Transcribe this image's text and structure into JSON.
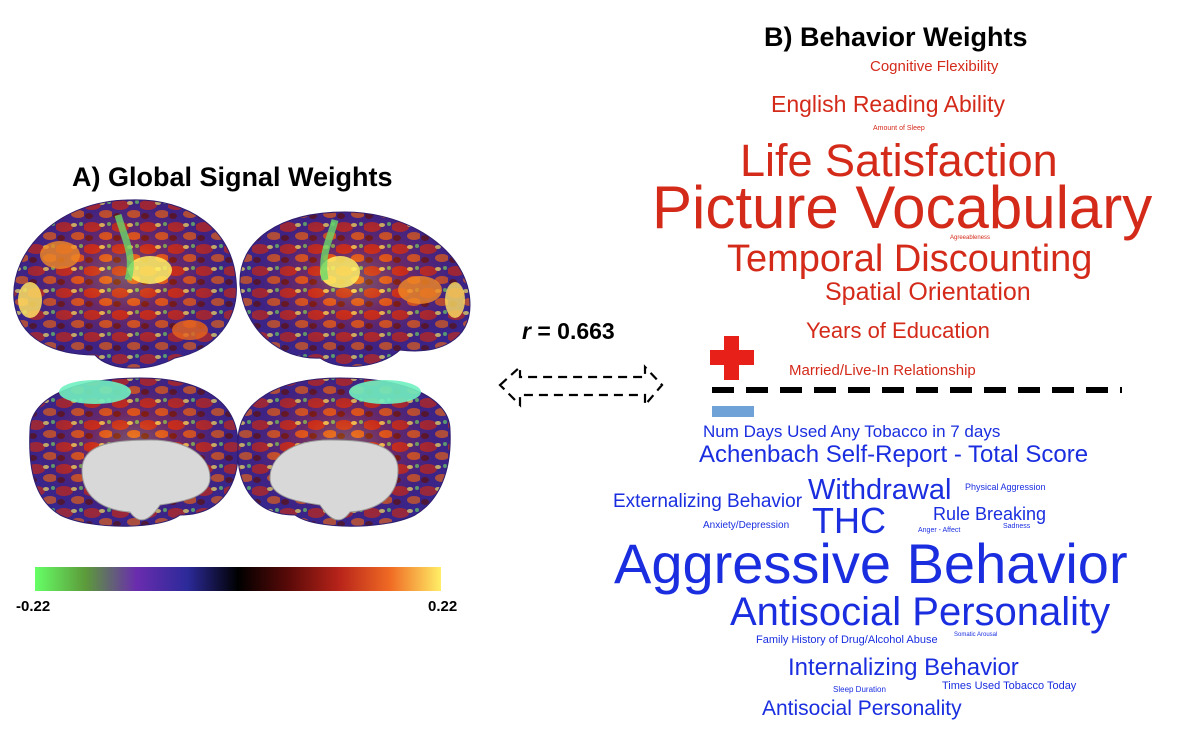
{
  "panel_a": {
    "title": "A) Global Signal Weights",
    "colorbar": {
      "min_label": "-0.22",
      "max_label": "0.22",
      "colors": [
        "#66ff66",
        "#5c9a3a",
        "#6a2cae",
        "#2c2a9a",
        "#000000",
        "#5a0a08",
        "#b8241a",
        "#f06b24",
        "#ffee66"
      ]
    }
  },
  "correlation": {
    "r_symbol": "r",
    "r_value_text": " = 0.663"
  },
  "panel_b": {
    "title": "B) Behavior Weights",
    "positive_words": [
      "Cognitive Flexibility",
      "English Reading Ability",
      "Amount of Sleep",
      "Life Satisfaction",
      "Picture Vocabulary",
      "Agreeableness",
      "Temporal Discounting",
      "Spatial Orientation",
      "Years of Education",
      "Married/Live-In Relationship"
    ],
    "negative_words": [
      "Num Days Used Any Tobacco in 7 days",
      "Achenbach Self-Report - Total Score",
      "Externalizing Behavior",
      "Withdrawal",
      "Physical Aggression",
      "Anxiety/Depression",
      "THC",
      "Rule Breaking",
      "Anger - Affect",
      "Sadness",
      "Aggressive Behavior",
      "Antisocial Personality",
      "Family History of Drug/Alcohol Abuse",
      "Somatic Arousal",
      "Internalizing Behavior",
      "Sleep Duration",
      "Times Used Tobacco Today",
      "Antisocial Personality"
    ],
    "positive_color": "#d42a1a",
    "negative_color": "#1a2ee0",
    "plus_color": "#e8201a",
    "minus_color": "#6fa3d8"
  }
}
